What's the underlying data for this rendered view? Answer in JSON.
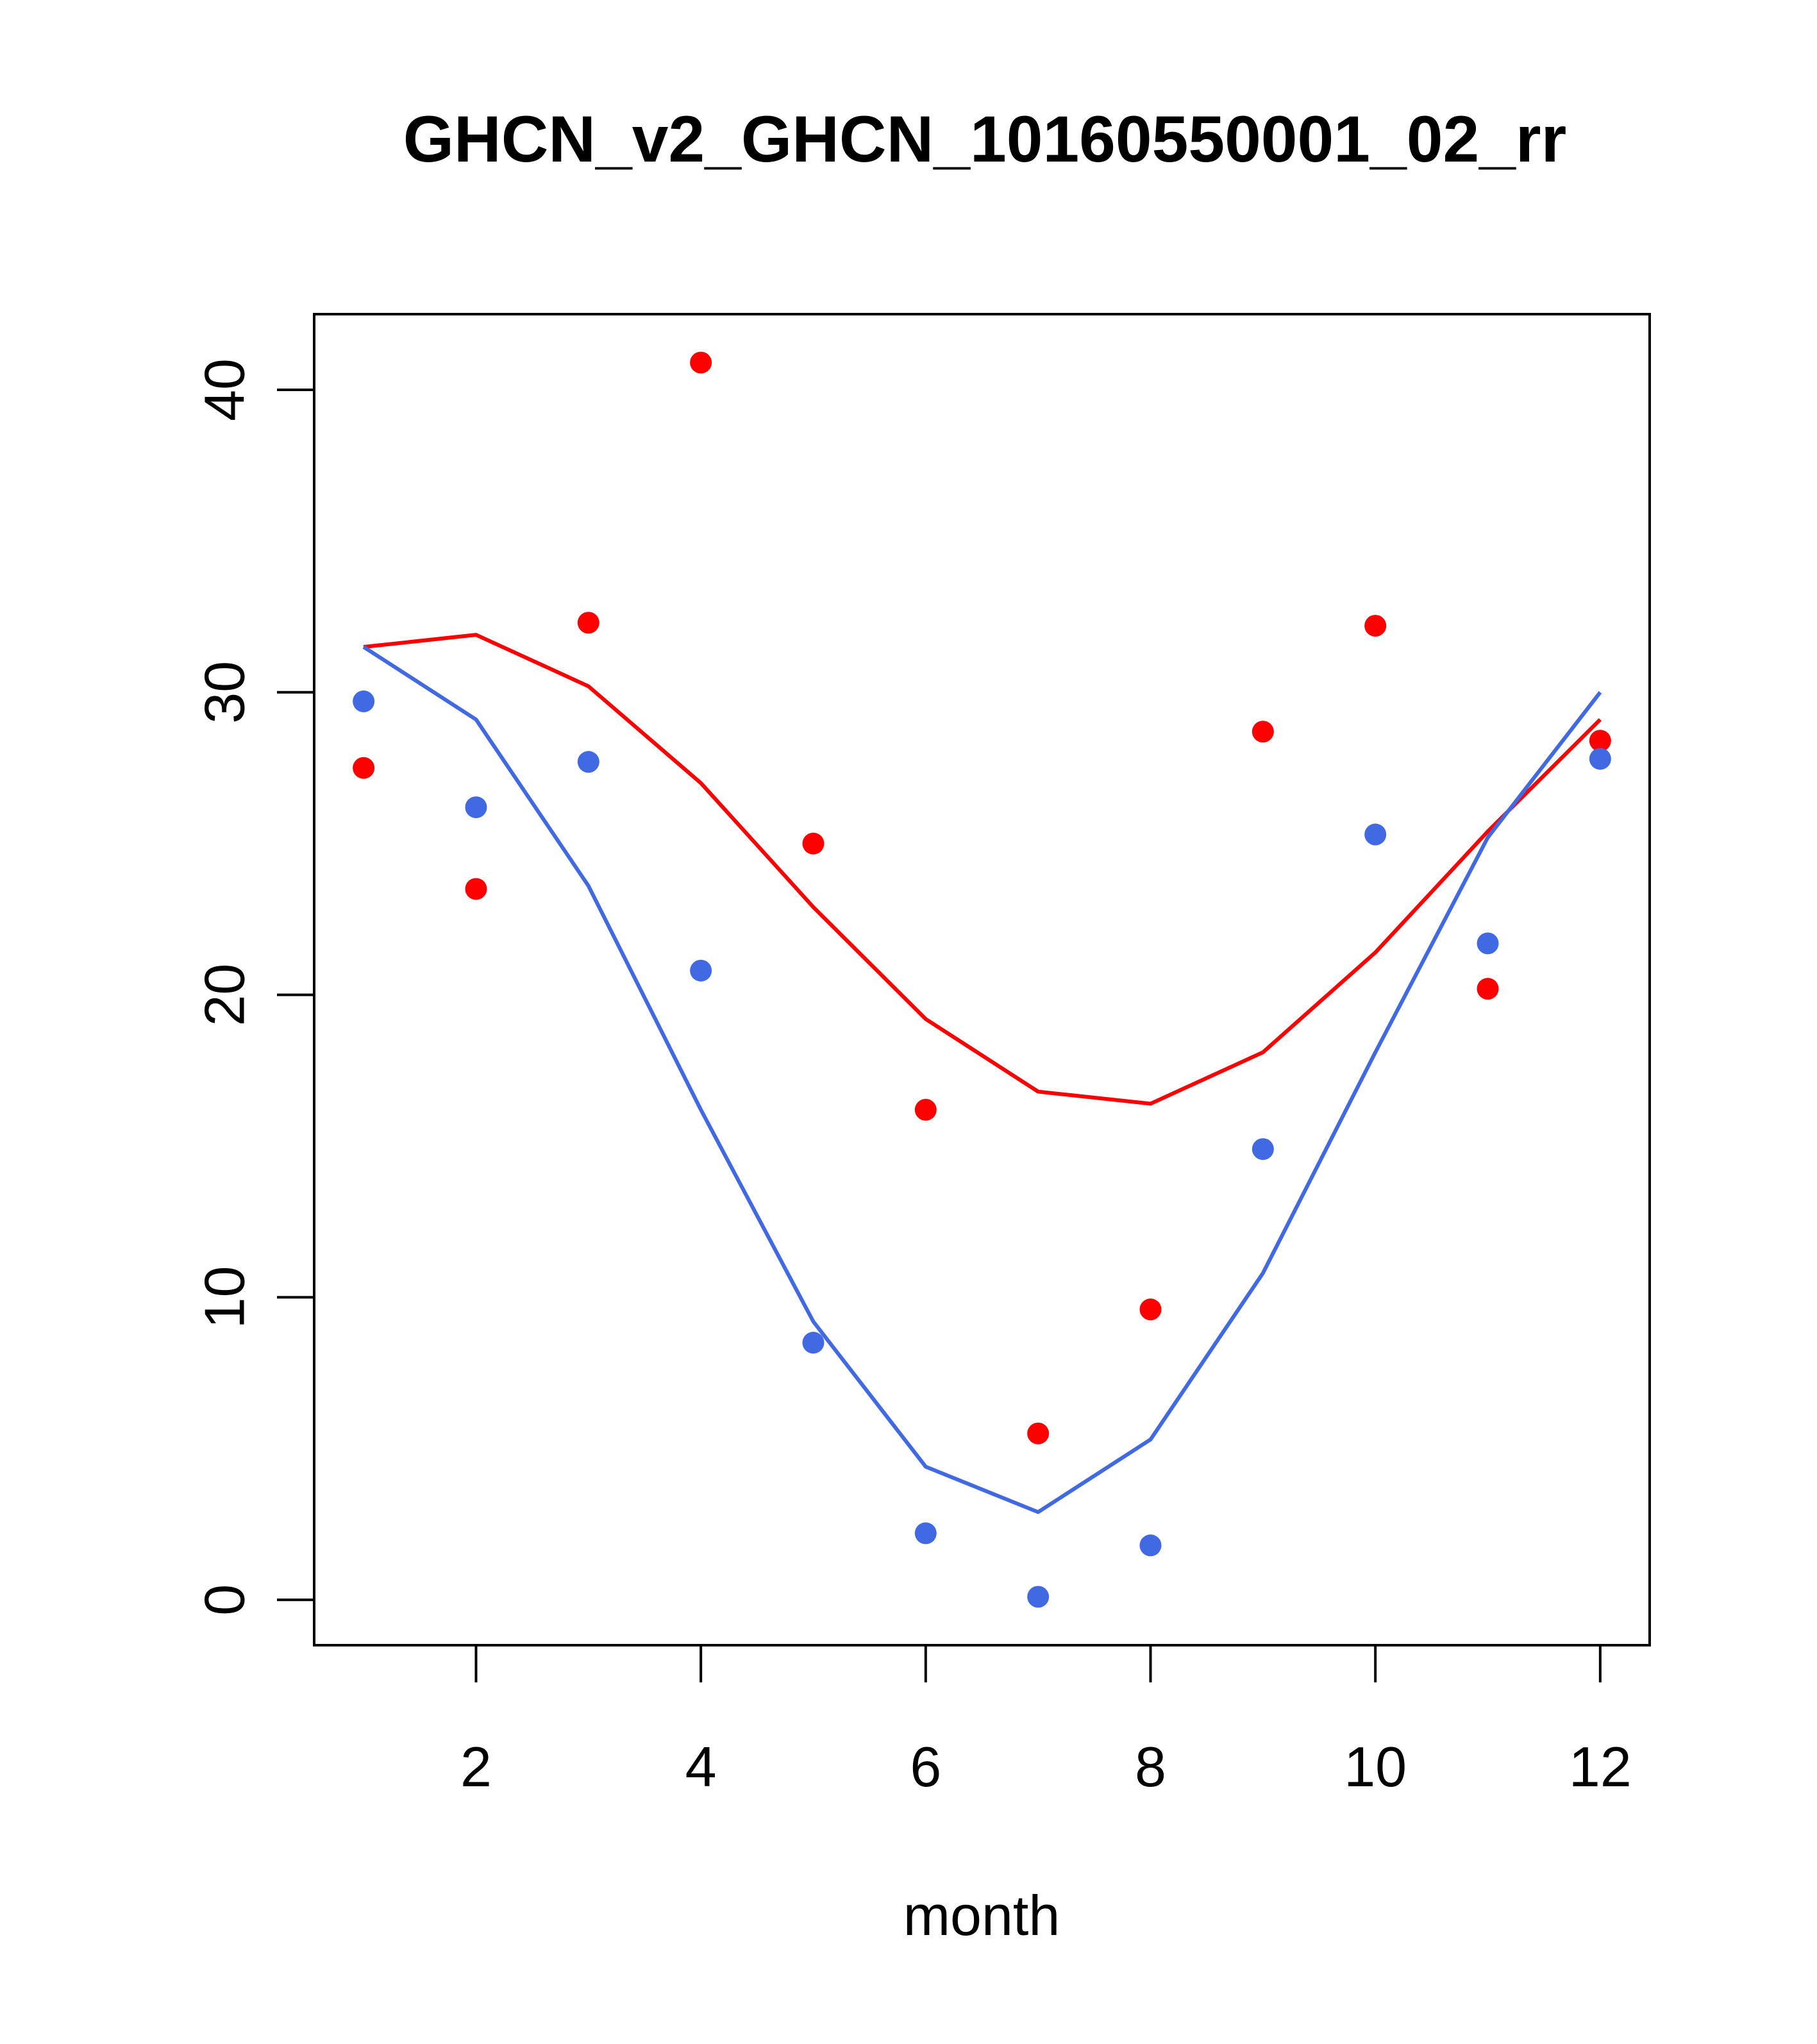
{
  "colors": {
    "observed_red": "#ff0000",
    "observed_blue": "#4169e1",
    "fit_red": "#ff0000",
    "fit_blue": "#4169e1",
    "axis": "#000000",
    "background": "#ffffff"
  },
  "chart_data": {
    "type": "scatter",
    "title": "GHCN_v2_GHCN_10160550001_02_rr",
    "xlabel": "month",
    "ylabel": "",
    "xlim": [
      0.56,
      12.44
    ],
    "ylim": [
      -1.5,
      42.5
    ],
    "x": [
      1,
      2,
      3,
      4,
      5,
      6,
      7,
      8,
      9,
      10,
      11,
      12
    ],
    "x_ticks": [
      2,
      4,
      6,
      8,
      10,
      12
    ],
    "x_tick_labels": [
      "2",
      "4",
      "6",
      "8",
      "10",
      "12"
    ],
    "y_ticks": [
      0,
      10,
      20,
      30,
      40
    ],
    "y_tick_labels": [
      "0",
      "10",
      "20",
      "30",
      "40"
    ],
    "grid": false,
    "series": [
      {
        "name": "red-points",
        "kind": "points",
        "color": "#ff0000",
        "values": [
          27.5,
          23.5,
          32.3,
          40.9,
          25.0,
          16.2,
          5.5,
          9.6,
          28.7,
          32.2,
          20.2,
          28.4
        ]
      },
      {
        "name": "blue-points",
        "kind": "points",
        "color": "#4169e1",
        "values": [
          29.7,
          26.2,
          27.7,
          20.8,
          8.5,
          2.2,
          0.1,
          1.8,
          14.9,
          25.3,
          21.7,
          27.8
        ]
      },
      {
        "name": "red-line",
        "kind": "line",
        "color": "#ff0000",
        "values": [
          31.5,
          31.9,
          30.2,
          27.0,
          22.9,
          19.2,
          16.8,
          16.4,
          18.1,
          21.4,
          25.4,
          29.1
        ]
      },
      {
        "name": "blue-line",
        "kind": "line",
        "color": "#4169e1",
        "values": [
          31.5,
          29.1,
          23.6,
          16.2,
          9.2,
          4.4,
          2.9,
          5.3,
          10.8,
          18.1,
          25.2,
          30.0
        ]
      }
    ]
  }
}
